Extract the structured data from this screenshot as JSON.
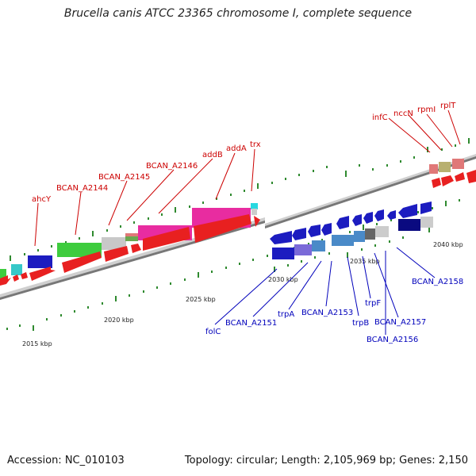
{
  "header": {
    "title": "Brucella canis ATCC 23365 chromosome I, complete sequence"
  },
  "footer": {
    "accession": "Accession: NC_010103",
    "summary": "Topology: circular; Length: 2,105,969 bp; Genes: 2,150"
  },
  "kbp_labels": [
    "2015 kbp",
    "2020 kbp",
    "2025 kbp",
    "2030 kbp",
    "2035 kbp",
    "2040 kbp"
  ],
  "genes_forward": [
    "ahcY",
    "BCAN_A2144",
    "BCAN_A2145",
    "BCAN_A2146",
    "addB",
    "addA",
    "trx",
    "infC",
    "nccN",
    "rpmI",
    "rplT"
  ],
  "genes_reverse": [
    "folC",
    "BCAN_A2151",
    "trpA",
    "BCAN_A2153",
    "trpB",
    "trpF",
    "BCAN_A2157",
    "BCAN_A2156",
    "BCAN_A2158"
  ],
  "colors": {
    "forward_label": "#cc0000",
    "reverse_label": "#0000bb",
    "axis": "#8c8c8c",
    "tick": "#2f8a2f"
  }
}
